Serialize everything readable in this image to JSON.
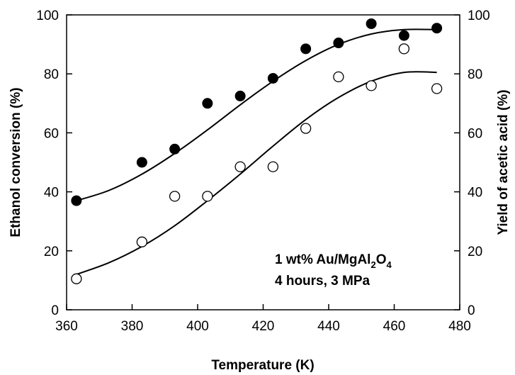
{
  "chart_data": {
    "type": "scatter",
    "xlabel": "Temperature (K)",
    "ylabel": "Ethanol conversion (%)",
    "y2label": "Yield of acetic acid (%)",
    "xlim": [
      360,
      480
    ],
    "ylim": [
      0,
      100
    ],
    "y2lim": [
      0,
      100
    ],
    "x_ticks": [
      "360",
      "380",
      "400",
      "420",
      "440",
      "460",
      "480"
    ],
    "y_ticks": [
      "0",
      "20",
      "40",
      "60",
      "80",
      "100"
    ],
    "y2_ticks": [
      "0",
      "20",
      "40",
      "60",
      "80",
      "100"
    ],
    "grid": false,
    "series": [
      {
        "marker": "filled-circle",
        "axis": "left",
        "points": [
          {
            "x": 363,
            "y": 37
          },
          {
            "x": 383,
            "y": 50
          },
          {
            "x": 393,
            "y": 54.5
          },
          {
            "x": 403,
            "y": 70
          },
          {
            "x": 413,
            "y": 72.5
          },
          {
            "x": 423,
            "y": 78.5
          },
          {
            "x": 433,
            "y": 88.5
          },
          {
            "x": 443,
            "y": 90.5
          },
          {
            "x": 453,
            "y": 97
          },
          {
            "x": 463,
            "y": 93
          },
          {
            "x": 473,
            "y": 95.5
          }
        ],
        "fit": [
          [
            363,
            37
          ],
          [
            373,
            40.5
          ],
          [
            383,
            46
          ],
          [
            393,
            53
          ],
          [
            403,
            61
          ],
          [
            413,
            69.5
          ],
          [
            423,
            77.5
          ],
          [
            433,
            84.5
          ],
          [
            443,
            90
          ],
          [
            453,
            93.5
          ],
          [
            463,
            95
          ],
          [
            473,
            95
          ]
        ]
      },
      {
        "marker": "open-circle",
        "axis": "right",
        "points": [
          {
            "x": 363,
            "y": 10.5
          },
          {
            "x": 383,
            "y": 23
          },
          {
            "x": 393,
            "y": 38.5
          },
          {
            "x": 403,
            "y": 38.5
          },
          {
            "x": 413,
            "y": 48.5
          },
          {
            "x": 423,
            "y": 48.5
          },
          {
            "x": 433,
            "y": 61.5
          },
          {
            "x": 443,
            "y": 79
          },
          {
            "x": 453,
            "y": 76
          },
          {
            "x": 463,
            "y": 88.5
          },
          {
            "x": 473,
            "y": 75
          }
        ],
        "fit": [
          [
            363,
            12
          ],
          [
            373,
            16
          ],
          [
            383,
            21.5
          ],
          [
            393,
            28.5
          ],
          [
            403,
            37
          ],
          [
            413,
            46
          ],
          [
            423,
            55.5
          ],
          [
            433,
            64.5
          ],
          [
            443,
            72
          ],
          [
            453,
            77.5
          ],
          [
            463,
            80.5
          ],
          [
            473,
            80.5
          ]
        ]
      }
    ],
    "annotation": {
      "line1_prefix": "1 wt% Au/MgAl",
      "sub1": "2",
      "mid": "O",
      "sub2": "4",
      "line2": "4 hours, 3 MPa"
    }
  }
}
